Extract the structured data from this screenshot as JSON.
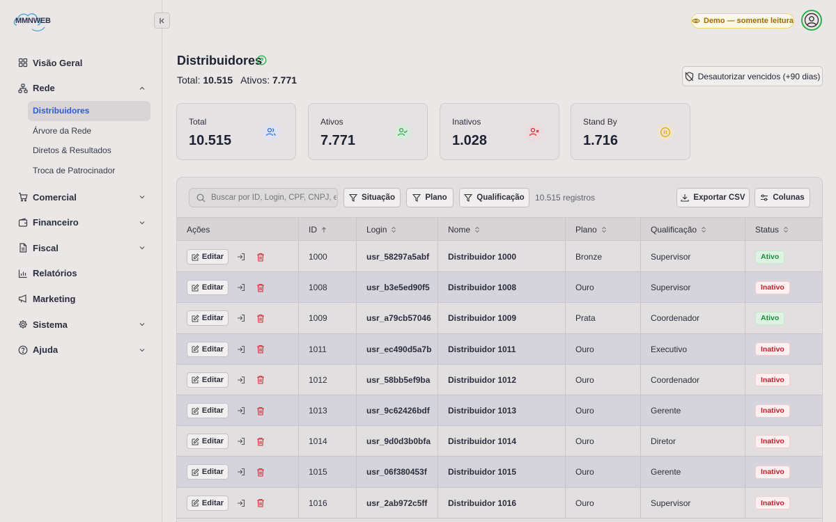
{
  "brand": {
    "name": "MMNWEB"
  },
  "demo_badge": "Demo — somente leitura",
  "sidebar": {
    "items": [
      {
        "label": "Visão Geral",
        "icon": "grid-icon",
        "has_chevron": false
      },
      {
        "label": "Rede",
        "icon": "network-icon",
        "has_chevron": true,
        "expanded": true,
        "children": [
          "Distribuidores",
          "Árvore da Rede",
          "Diretos & Resultados",
          "Troca de Patrocinador"
        ]
      },
      {
        "label": "Comercial",
        "icon": "cart-icon",
        "has_chevron": true
      },
      {
        "label": "Financeiro",
        "icon": "wallet-icon",
        "has_chevron": true
      },
      {
        "label": "Fiscal",
        "icon": "file-icon",
        "has_chevron": true
      },
      {
        "label": "Relatórios",
        "icon": "bar-chart-icon",
        "has_chevron": false
      },
      {
        "label": "Marketing",
        "icon": "megaphone-icon",
        "has_chevron": false
      },
      {
        "label": "Sistema",
        "icon": "gear-icon",
        "has_chevron": true
      },
      {
        "label": "Ajuda",
        "icon": "help-circle-icon",
        "has_chevron": true
      }
    ],
    "active_child": "Distribuidores"
  },
  "header": {
    "title": "Distribuidores",
    "total_label": "Total:",
    "total_value": "10.515",
    "active_label": "Ativos:",
    "active_value": "7.771",
    "deauth_button": "Desautorizar vencidos (+90 dias)"
  },
  "stats": [
    {
      "label": "Total",
      "value": "10.515",
      "icon": "users-icon",
      "color": "#3b6fd8",
      "bg": "#dfe3ef"
    },
    {
      "label": "Ativos",
      "value": "7.771",
      "icon": "user-check-icon",
      "color": "#2bb14b",
      "bg": "#dce9df"
    },
    {
      "label": "Inativos",
      "value": "1.028",
      "icon": "user-x-icon",
      "color": "#d22a33",
      "bg": "#ecdcde"
    },
    {
      "label": "Stand By",
      "value": "1.716",
      "icon": "pause-circle-icon",
      "color": "#e0a805",
      "bg": "#ece5d4"
    }
  ],
  "toolbar": {
    "search_placeholder": "Buscar por ID, Login, CPF, CNPJ, e-Mail",
    "filters": [
      "Situação",
      "Plano",
      "Qualificação"
    ],
    "records": "10.515 registros",
    "export_label": "Exportar CSV",
    "columns_label": "Colunas"
  },
  "table": {
    "columns": [
      "Ações",
      "ID",
      "Login",
      "Nome",
      "Plano",
      "Qualificação",
      "Status"
    ],
    "edit_label": "Editar",
    "rows": [
      {
        "id": "1000",
        "login": "usr_58297a5abf",
        "nome": "Distribuidor 1000",
        "plano": "Bronze",
        "qualificacao": "Supervisor",
        "status": "Ativo"
      },
      {
        "id": "1008",
        "login": "usr_b3e5ed90f5",
        "nome": "Distribuidor 1008",
        "plano": "Ouro",
        "qualificacao": "Supervisor",
        "status": "Inativo"
      },
      {
        "id": "1009",
        "login": "usr_a79cb57046",
        "nome": "Distribuidor 1009",
        "plano": "Prata",
        "qualificacao": "Coordenador",
        "status": "Ativo"
      },
      {
        "id": "1011",
        "login": "usr_ec490d5a7b",
        "nome": "Distribuidor 1011",
        "plano": "Ouro",
        "qualificacao": "Executivo",
        "status": "Inativo"
      },
      {
        "id": "1012",
        "login": "usr_58bb5ef9ba",
        "nome": "Distribuidor 1012",
        "plano": "Ouro",
        "qualificacao": "Coordenador",
        "status": "Inativo"
      },
      {
        "id": "1013",
        "login": "usr_9c62426bdf",
        "nome": "Distribuidor 1013",
        "plano": "Ouro",
        "qualificacao": "Gerente",
        "status": "Inativo"
      },
      {
        "id": "1014",
        "login": "usr_9d0d3b0bfa",
        "nome": "Distribuidor 1014",
        "plano": "Ouro",
        "qualificacao": "Diretor",
        "status": "Inativo"
      },
      {
        "id": "1015",
        "login": "usr_06f380453f",
        "nome": "Distribuidor 1015",
        "plano": "Ouro",
        "qualificacao": "Gerente",
        "status": "Inativo"
      },
      {
        "id": "1016",
        "login": "usr_2ab972c5ff",
        "nome": "Distribuidor 1016",
        "plano": "Ouro",
        "qualificacao": "Supervisor",
        "status": "Inativo"
      }
    ]
  }
}
